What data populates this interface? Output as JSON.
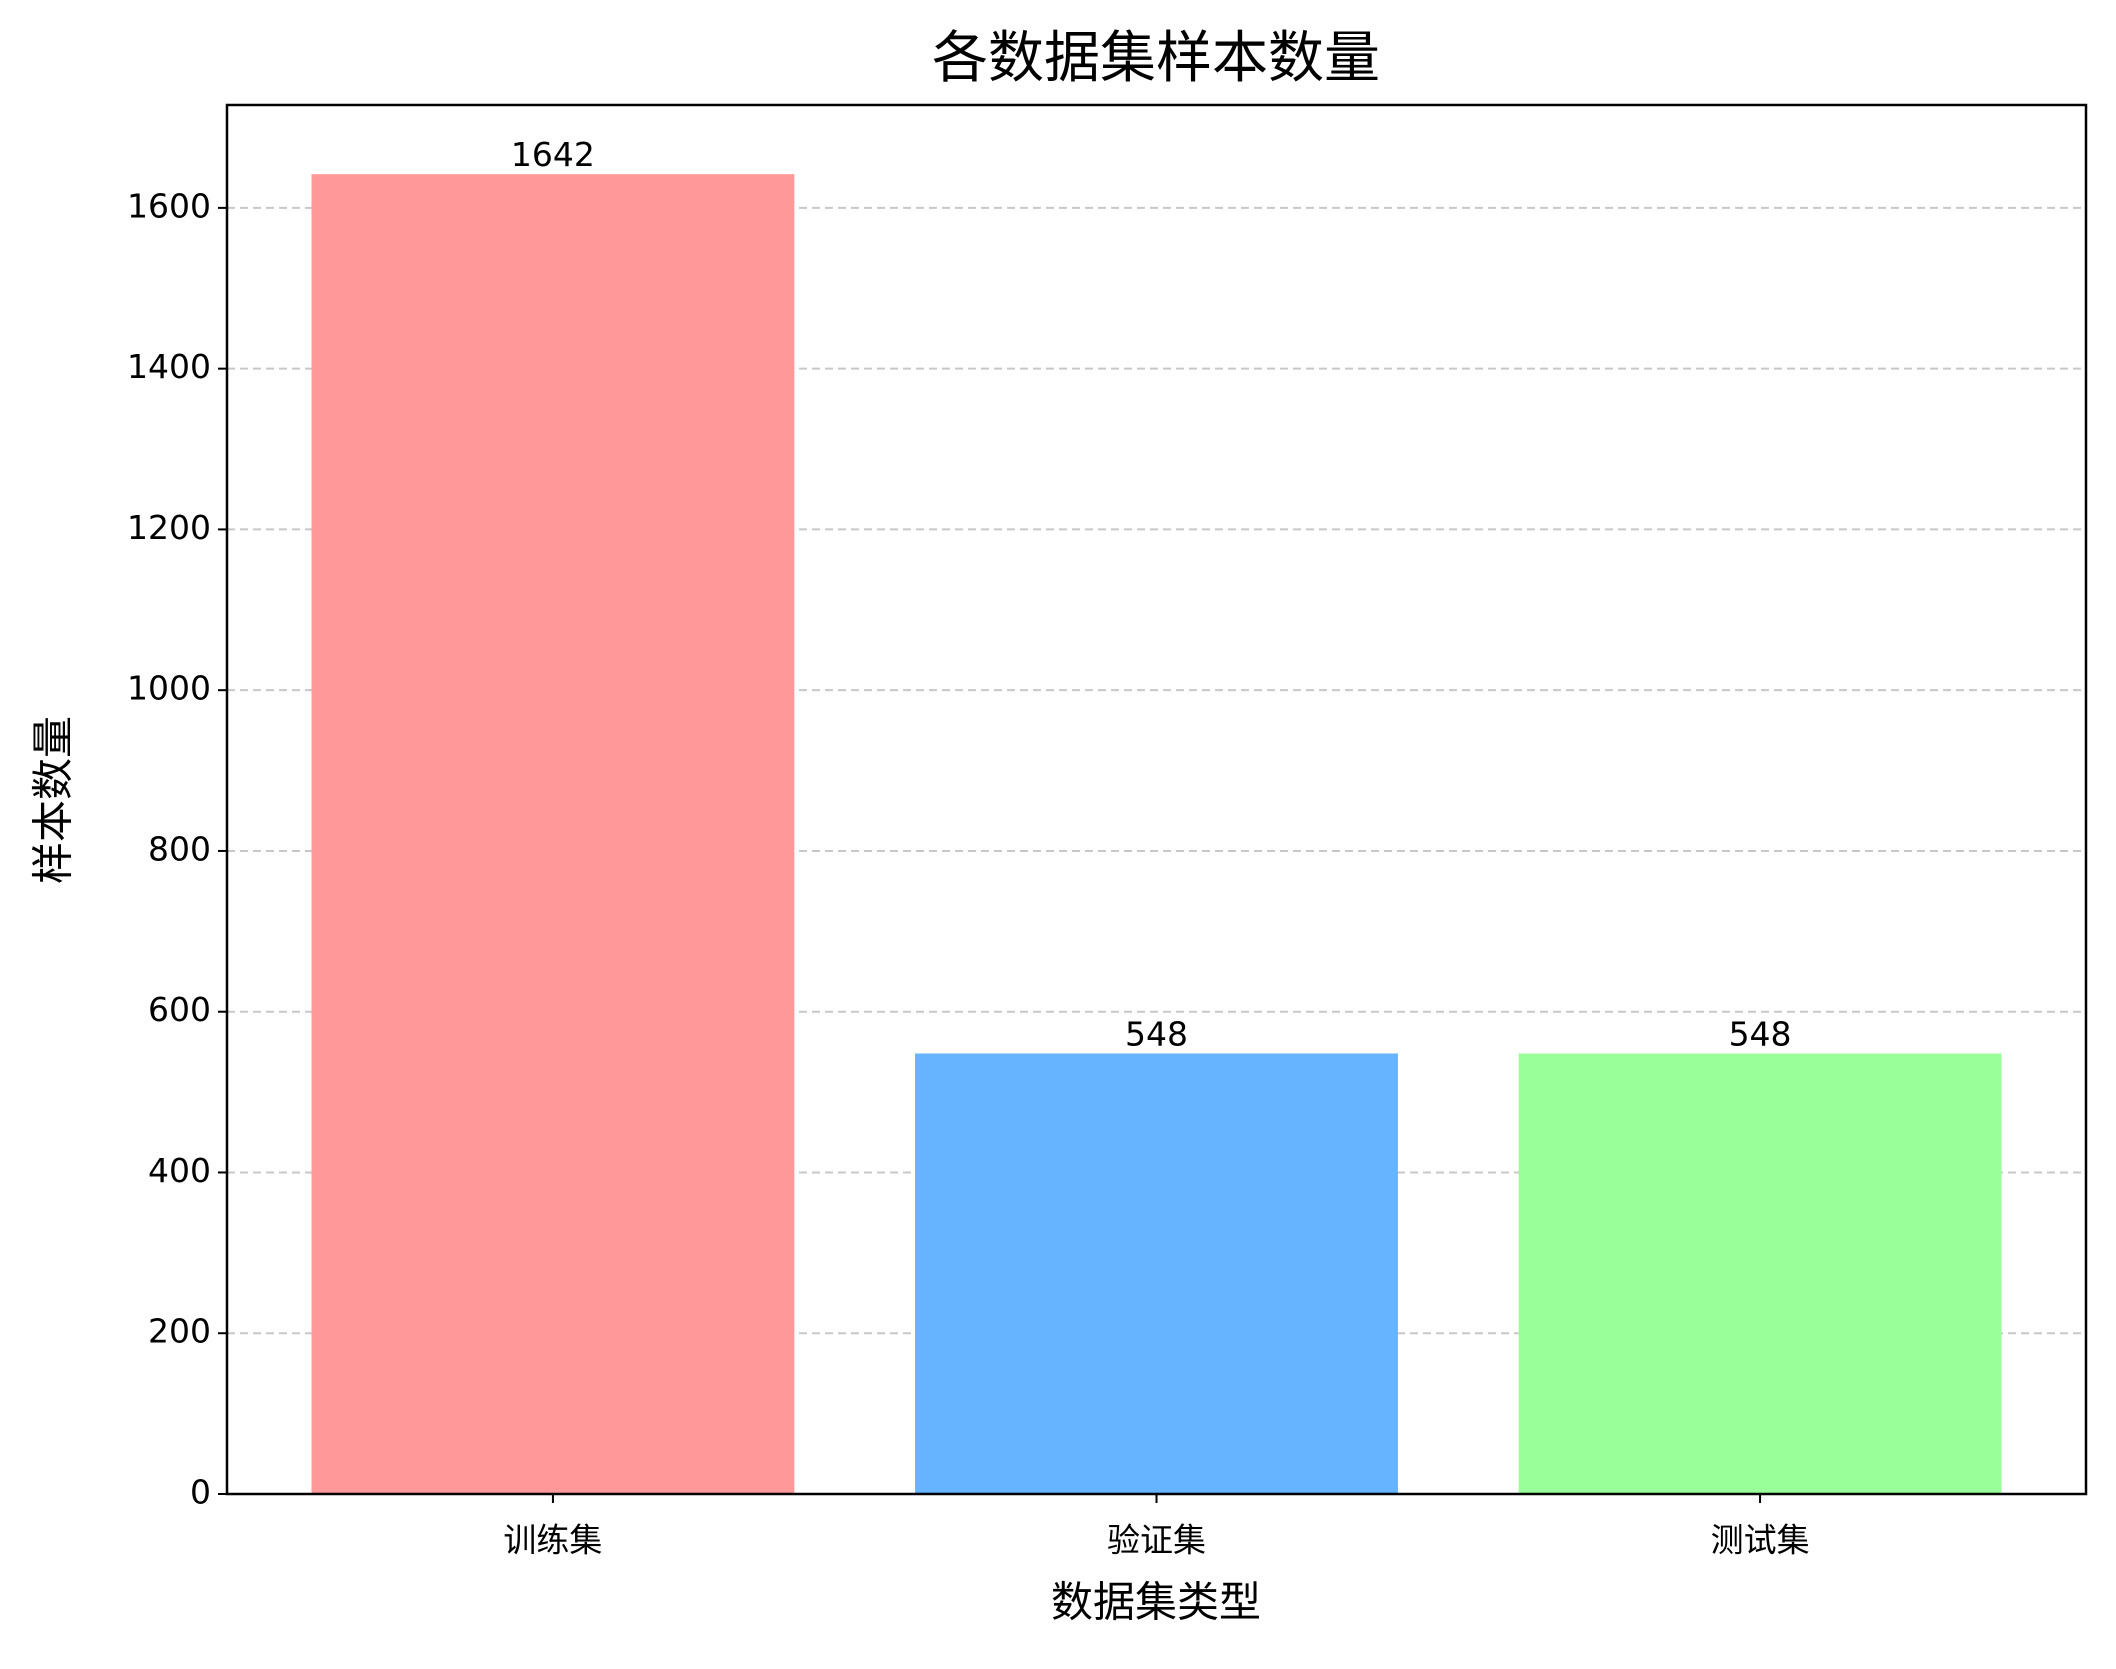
{
  "chart_data": {
    "type": "bar",
    "title": "各数据集样本数量",
    "x_label": "数据集类型",
    "y_label": "样本数量",
    "categories": [
      "训练集",
      "验证集",
      "测试集"
    ],
    "values": [
      1642,
      548,
      548
    ],
    "colors": [
      "#ff9999",
      "#66b3ff",
      "#99ff99"
    ],
    "ylim": [
      0,
      1728
    ],
    "yticks": [
      0,
      200,
      400,
      600,
      800,
      1000,
      1200,
      1400,
      1600
    ],
    "grid": true
  }
}
